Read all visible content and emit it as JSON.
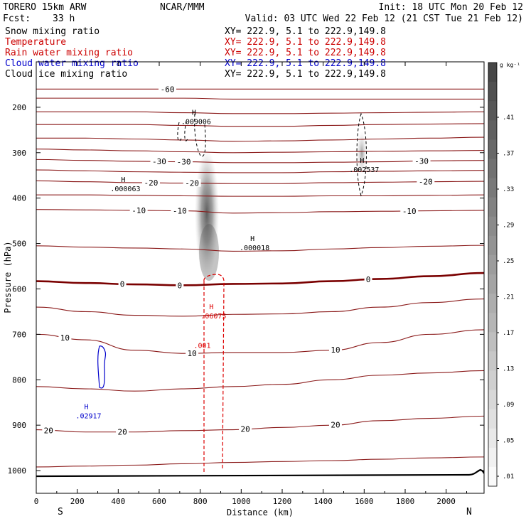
{
  "header": {
    "model": "TORERO  15km ARW",
    "org": "NCAR/MMM",
    "init": "Init: 18 UTC Mon 20 Feb 12",
    "fcst_label": "Fcst:",
    "fcst_value": "33 h",
    "valid": "Valid: 03 UTC Wed 22 Feb 12 (21 CST Tue 21 Feb 12)"
  },
  "fields": [
    {
      "name": "Snow mixing ratio",
      "xy": "XY= 222.9,  5.1 to 222.9,149.8",
      "color": "#000000"
    },
    {
      "name": "Temperature",
      "xy": "XY= 222.9,  5.1 to 222.9,149.8",
      "color": "#cc0000"
    },
    {
      "name": "Rain water mixing ratio",
      "xy": "XY= 222.9,  5.1 to 222.9,149.8",
      "color": "#cc0000"
    },
    {
      "name": "Cloud water mixing ratio",
      "xy": "XY= 222.9,  5.1 to 222.9,149.8",
      "color": "#0000cc"
    },
    {
      "name": "Cloud ice mixing ratio",
      "xy": "XY= 222.9,  5.1 to 222.9,149.8",
      "color": "#000000"
    }
  ],
  "colors": {
    "temperature": "#8b1a1a",
    "freezing": "#7a0000",
    "rain": "#dd0000",
    "cloud_water": "#0000cc",
    "ink": "#000000"
  },
  "chart_data": {
    "type": "contour",
    "title": "Vertical cross section",
    "xlabel": "Distance (km)",
    "ylabel": "Pressure (hPa)",
    "x_ticks": [
      0,
      200,
      400,
      600,
      800,
      1000,
      1200,
      1400,
      1600,
      1800,
      2000
    ],
    "x_range": [
      0,
      2185
    ],
    "y_ticks": [
      200,
      300,
      400,
      500,
      600,
      700,
      800,
      900,
      1000
    ],
    "y_range": [
      100,
      1050
    ],
    "x_end_labels": {
      "left": "S",
      "right": "N"
    },
    "colorbar": {
      "unit": "g kg⁻¹",
      "labels": [
        ".41",
        ".37",
        ".33",
        ".29",
        ".25",
        ".21",
        ".17",
        ".13",
        ".09",
        ".05",
        ".01"
      ]
    },
    "temperature_levels_C": [
      -60,
      -55,
      -50,
      -45,
      -40,
      -35,
      -30,
      -25,
      -20,
      -15,
      -10,
      -5,
      0,
      5,
      10,
      15,
      20,
      25
    ],
    "temperature_contours": [
      {
        "level": -60,
        "pressures_hPa": [
          160,
          160,
          160,
          160,
          160,
          160,
          160,
          160,
          160,
          160
        ],
        "labels": [
          {
            "text": "-60",
            "x": 640
          }
        ]
      },
      {
        "level": -55,
        "pressures_hPa": [
          180,
          180,
          180,
          180,
          182,
          182,
          182,
          182,
          182,
          182
        ],
        "labels": []
      },
      {
        "level": -50,
        "pressures_hPa": [
          210,
          210,
          210,
          212,
          214,
          214,
          213,
          212,
          211,
          210
        ],
        "labels": []
      },
      {
        "level": -45,
        "pressures_hPa": [
          238,
          238,
          238,
          240,
          242,
          242,
          240,
          238,
          237,
          236
        ],
        "labels": []
      },
      {
        "level": -40,
        "pressures_hPa": [
          268,
          268,
          270,
          272,
          275,
          274,
          272,
          270,
          268,
          266
        ],
        "labels": []
      },
      {
        "level": -35,
        "pressures_hPa": [
          292,
          294,
          296,
          298,
          300,
          299,
          298,
          297,
          296,
          295
        ],
        "labels": []
      },
      {
        "level": -30,
        "pressures_hPa": [
          315,
          317,
          319,
          320,
          322,
          322,
          321,
          320,
          318,
          317
        ],
        "labels": [
          {
            "text": "-30",
            "x": 600
          },
          {
            "text": "-30",
            "x": 720
          },
          {
            "text": "-30",
            "x": 1880
          }
        ]
      },
      {
        "level": -25,
        "pressures_hPa": [
          338,
          340,
          342,
          343,
          344,
          344,
          342,
          341,
          340,
          339
        ],
        "labels": []
      },
      {
        "level": -20,
        "pressures_hPa": [
          362,
          364,
          366,
          367,
          368,
          368,
          366,
          365,
          364,
          363
        ],
        "labels": [
          {
            "text": "-20",
            "x": 560
          },
          {
            "text": "-20",
            "x": 760
          },
          {
            "text": "-20",
            "x": 1900
          }
        ]
      },
      {
        "level": -15,
        "pressures_hPa": [
          393,
          393,
          394,
          395,
          396,
          396,
          395,
          395,
          394,
          393
        ],
        "labels": []
      },
      {
        "level": -10,
        "pressures_hPa": [
          425,
          426,
          427,
          428,
          433,
          432,
          430,
          429,
          428,
          427
        ],
        "labels": [
          {
            "text": "-10",
            "x": 500
          },
          {
            "text": "-10",
            "x": 700
          },
          {
            "text": "-10",
            "x": 1820
          }
        ]
      },
      {
        "level": -5,
        "pressures_hPa": [
          505,
          508,
          510,
          512,
          517,
          516,
          512,
          509,
          506,
          504
        ],
        "labels": []
      },
      {
        "level": 0,
        "pressures_hPa": [
          583,
          587,
          590,
          592,
          589,
          588,
          583,
          578,
          572,
          565
        ],
        "labels": [
          {
            "text": "0",
            "x": 420
          },
          {
            "text": "0",
            "x": 700
          },
          {
            "text": "0",
            "x": 1620
          }
        ]
      },
      {
        "level": 5,
        "pressures_hPa": [
          640,
          650,
          658,
          660,
          656,
          655,
          650,
          640,
          630,
          622
        ],
        "labels": []
      },
      {
        "level": 10,
        "pressures_hPa": [
          700,
          712,
          735,
          742,
          740,
          740,
          735,
          718,
          700,
          690
        ],
        "labels": [
          {
            "text": "10",
            "x": 140
          },
          {
            "text": "10",
            "x": 760
          },
          {
            "text": "10",
            "x": 1460
          }
        ]
      },
      {
        "level": 15,
        "pressures_hPa": [
          815,
          820,
          825,
          820,
          815,
          810,
          800,
          790,
          785,
          780
        ],
        "labels": []
      },
      {
        "level": 20,
        "pressures_hPa": [
          910,
          915,
          915,
          912,
          910,
          905,
          900,
          890,
          885,
          880
        ],
        "labels": [
          {
            "text": "20",
            "x": 60
          },
          {
            "text": "20",
            "x": 420
          },
          {
            "text": "20",
            "x": 1020
          },
          {
            "text": "20",
            "x": 1460
          }
        ]
      },
      {
        "level": 25,
        "pressures_hPa": [
          992,
          990,
          988,
          985,
          982,
          980,
          978,
          975,
          972,
          970
        ],
        "labels": []
      }
    ],
    "contour_x_km": [
      0,
      240,
      480,
      720,
      960,
      1200,
      1440,
      1680,
      1920,
      2160
    ],
    "extrema_labels": [
      {
        "text": ".009006",
        "field": "snow",
        "x_km": 780,
        "p_hPa": 232
      },
      {
        "text": ".002537",
        "field": "snow",
        "x_km": 1600,
        "p_hPa": 338
      },
      {
        "text": ".000063",
        "field": "snow",
        "x_km": 435,
        "p_hPa": 380
      },
      {
        "text": ".000018",
        "field": "snow",
        "x_km": 1065,
        "p_hPa": 510
      },
      {
        "text": ".06075",
        "field": "rain",
        "x_km": 865,
        "p_hPa": 660
      },
      {
        "text": ".001",
        "field": "rain",
        "x_km": 810,
        "p_hPa": 725
      },
      {
        "text": ".02917",
        "field": "cloud_water",
        "x_km": 255,
        "p_hPa": 880
      }
    ],
    "extrema_marker": "H"
  }
}
